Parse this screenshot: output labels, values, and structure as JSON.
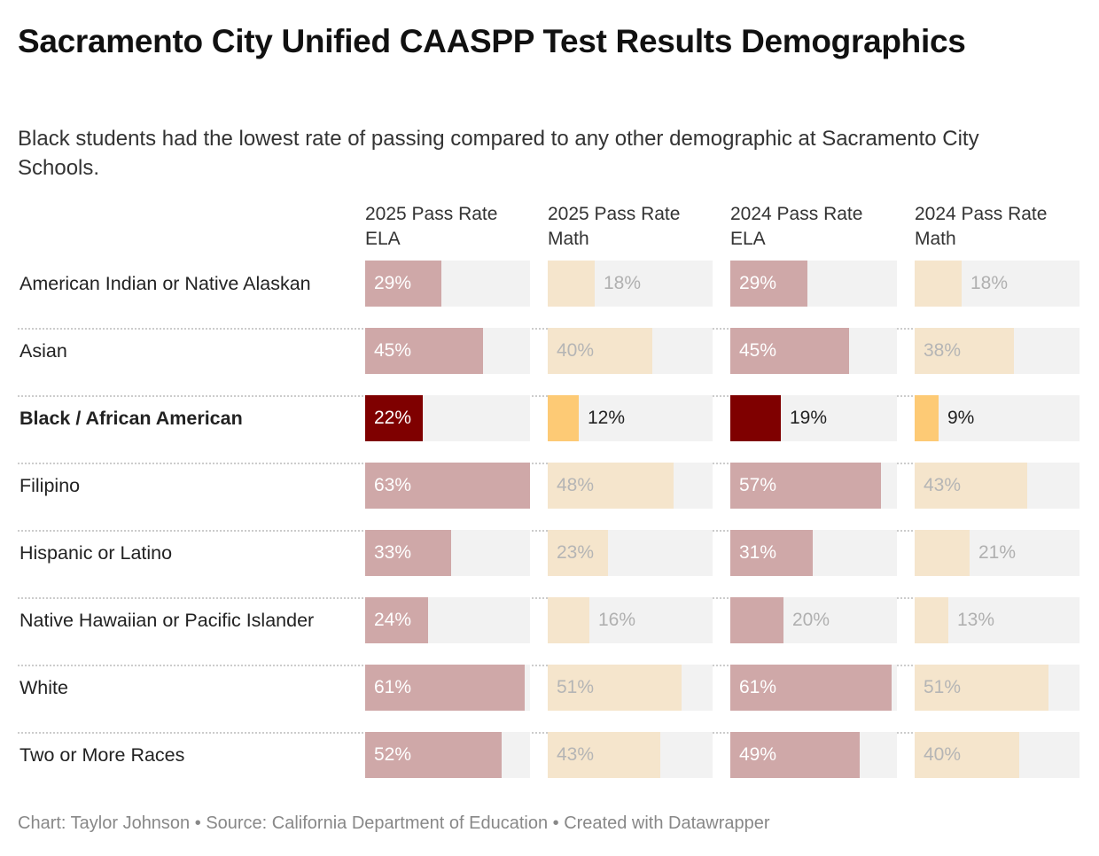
{
  "title": "Sacramento City Unified CAASPP Test Results Demographics",
  "subtitle": "Black students had the lowest rate of passing compared to any other demographic at Sacramento City Schools.",
  "colors": {
    "ela_muted": "#cfa8a8",
    "ela_highlight": "#7f0000",
    "math_muted": "#f5e5cc",
    "math_highlight": "#fdca75",
    "bar_background": "#f2f2f2"
  },
  "chart_data": {
    "type": "table",
    "scale_max": 63,
    "highlighted_row": "Black / African American",
    "columns": [
      "2025 Pass Rate ELA",
      "2025 Pass Rate Math",
      "2024 Pass Rate ELA",
      "2024 Pass Rate Math"
    ],
    "column_types": [
      "ela",
      "math",
      "ela",
      "math"
    ],
    "rows": [
      {
        "label": "American Indian or Native Alaskan",
        "values": [
          29,
          18,
          29,
          18
        ]
      },
      {
        "label": "Asian",
        "values": [
          45,
          40,
          45,
          38
        ]
      },
      {
        "label": "Black / African American",
        "values": [
          22,
          12,
          19,
          9
        ]
      },
      {
        "label": "Filipino",
        "values": [
          63,
          48,
          57,
          43
        ]
      },
      {
        "label": "Hispanic or Latino",
        "values": [
          33,
          23,
          31,
          21
        ]
      },
      {
        "label": "Native Hawaiian or Pacific Islander",
        "values": [
          24,
          16,
          20,
          13
        ]
      },
      {
        "label": "White",
        "values": [
          61,
          51,
          61,
          51
        ]
      },
      {
        "label": "Two or More Races",
        "values": [
          52,
          43,
          49,
          40
        ]
      }
    ]
  },
  "footer": {
    "chart_credit": "Chart: Taylor Johnson",
    "separator": " • ",
    "source": "Source: California Department of Education",
    "created_with": "Created with Datawrapper"
  }
}
